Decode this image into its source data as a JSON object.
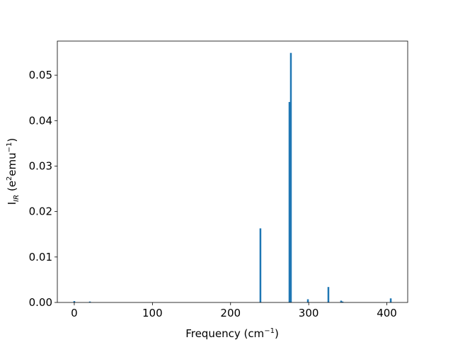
{
  "chart_data": {
    "type": "bar",
    "xlabel": [
      "Frequency (cm",
      "−1",
      ")"
    ],
    "ylabel": [
      "I",
      "IR",
      " (e",
      "2",
      "emu",
      "−1",
      ")"
    ],
    "x": [
      0,
      20,
      238.2,
      275.4,
      277.2,
      299,
      325.2,
      341.5,
      343.3,
      405
    ],
    "values": [
      0.0003,
      0.0002,
      0.0163,
      0.0441,
      0.0549,
      0.0007,
      0.0034,
      0.0004,
      0.0002,
      0.0009
    ],
    "color": "#1f77b4",
    "xlim": [
      -21.7,
      426.7
    ],
    "xticks": [
      0,
      100,
      200,
      300,
      400
    ],
    "ylim": [
      0,
      0.0575
    ],
    "yticks": [
      {
        "value": 0,
        "label": "0.00"
      },
      0.01,
      0.02,
      0.03,
      0.04,
      0.05
    ],
    "grid": false
  }
}
